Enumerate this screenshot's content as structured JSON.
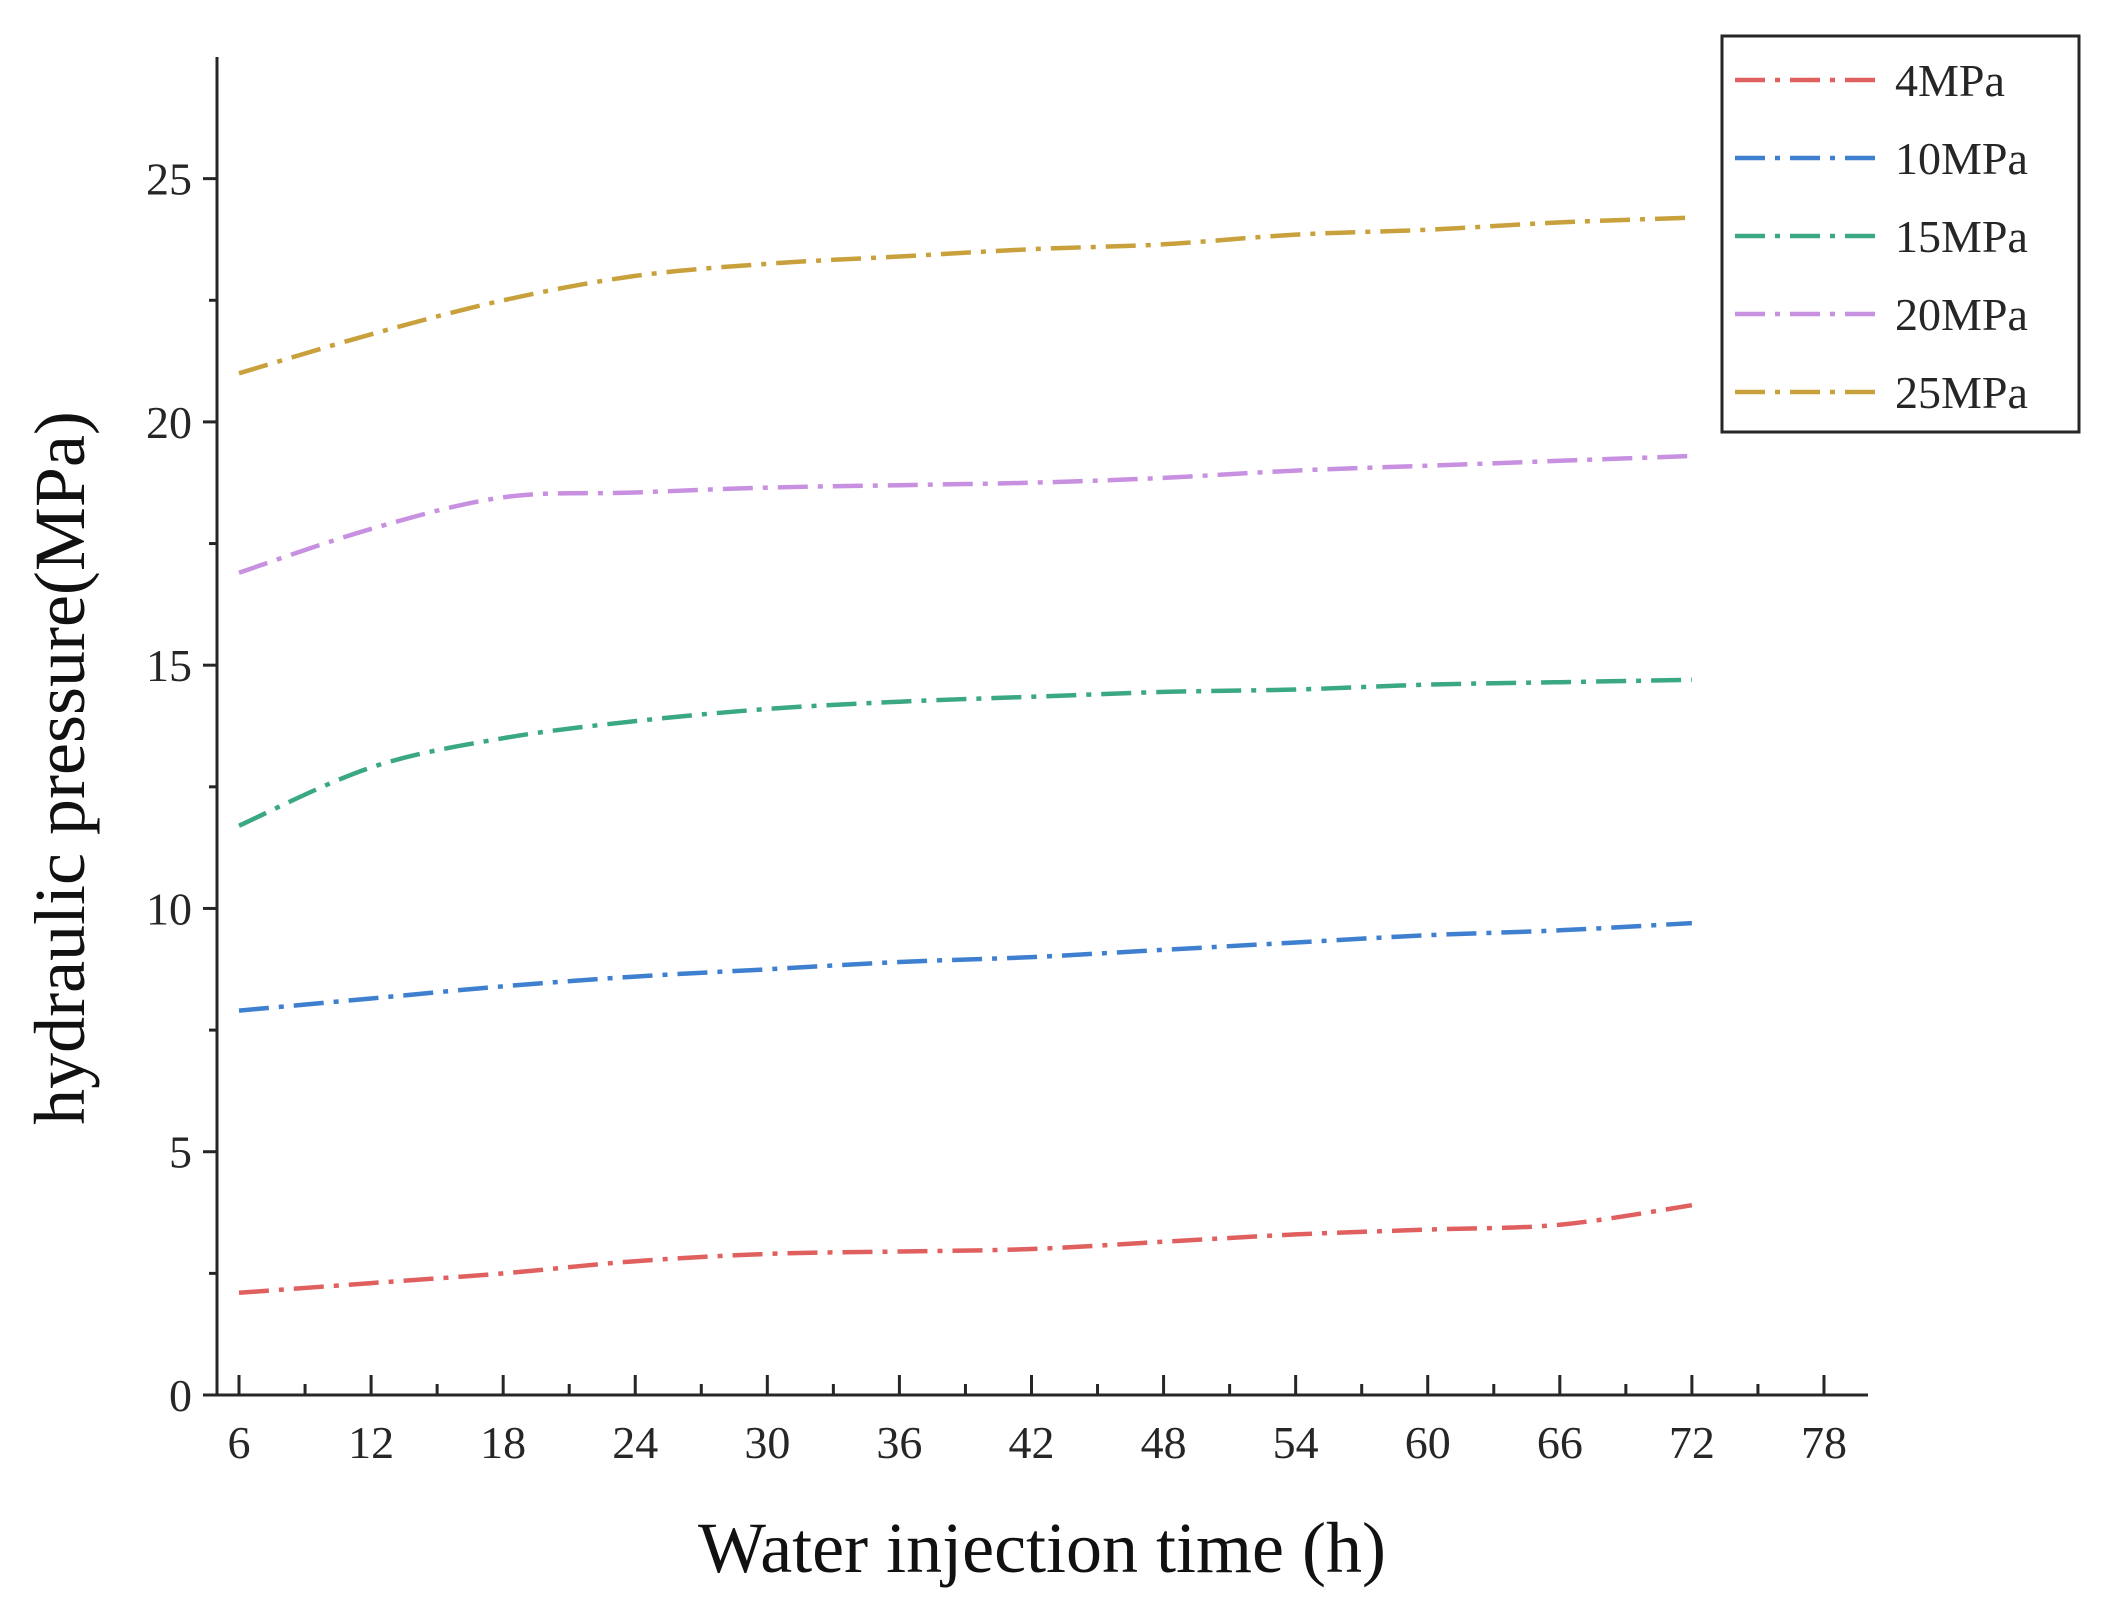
{
  "chart_data": {
    "type": "line",
    "title": "",
    "xlabel": "Water injection time (h)",
    "ylabel": "hydraulic pressure(MPa)",
    "xlim": [
      5,
      80
    ],
    "ylim": [
      0,
      27.5
    ],
    "xticks": [
      6,
      12,
      18,
      24,
      30,
      36,
      42,
      48,
      54,
      60,
      66,
      72,
      78
    ],
    "yticks": [
      0,
      5,
      10,
      15,
      20,
      25
    ],
    "x": [
      6,
      12,
      18,
      24,
      30,
      36,
      42,
      48,
      54,
      60,
      66,
      72
    ],
    "series": [
      {
        "name": "4MPa",
        "color": "#e0605f",
        "values": [
          2.1,
          2.3,
          2.5,
          2.75,
          2.9,
          2.95,
          3.0,
          3.15,
          3.3,
          3.4,
          3.5,
          3.9
        ]
      },
      {
        "name": "10MPa",
        "color": "#3f7fd0",
        "values": [
          7.9,
          8.15,
          8.4,
          8.6,
          8.75,
          8.9,
          9.0,
          9.15,
          9.3,
          9.45,
          9.55,
          9.7
        ]
      },
      {
        "name": "15MPa",
        "color": "#3aa882",
        "values": [
          11.7,
          12.9,
          13.5,
          13.85,
          14.1,
          14.25,
          14.35,
          14.45,
          14.5,
          14.6,
          14.65,
          14.7
        ]
      },
      {
        "name": "20MPa",
        "color": "#c890e0",
        "values": [
          16.9,
          17.8,
          18.45,
          18.55,
          18.65,
          18.7,
          18.75,
          18.85,
          19.0,
          19.1,
          19.2,
          19.3
        ]
      },
      {
        "name": "25MPa",
        "color": "#c8a13c",
        "values": [
          21.0,
          21.8,
          22.5,
          23.0,
          23.25,
          23.4,
          23.55,
          23.65,
          23.85,
          23.95,
          24.1,
          24.2
        ]
      }
    ],
    "legend_position": "top-right",
    "grid": false
  }
}
